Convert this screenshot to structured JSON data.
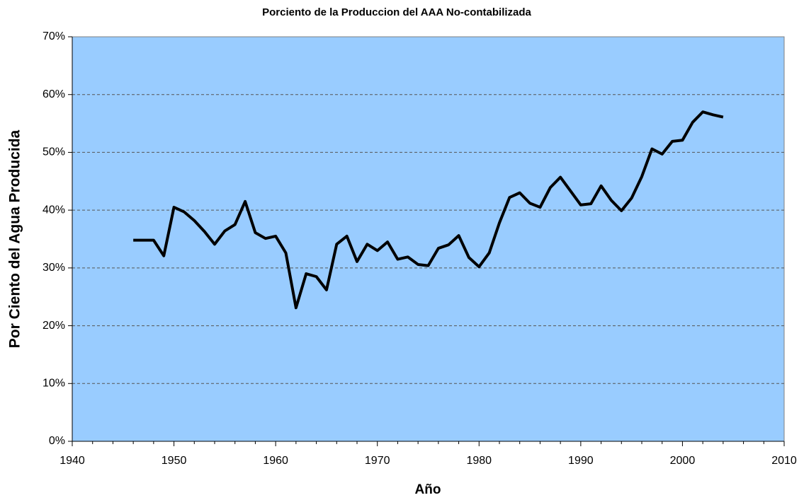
{
  "chart_data": {
    "type": "line",
    "title": "Porciento de la Produccion del AAA No-contabilizada",
    "x_label": "Año",
    "y_label": "Por Ciento del Agua Producida",
    "x": [
      1946,
      1947,
      1948,
      1949,
      1950,
      1951,
      1952,
      1953,
      1954,
      1955,
      1956,
      1957,
      1958,
      1959,
      1960,
      1961,
      1962,
      1963,
      1964,
      1965,
      1966,
      1967,
      1968,
      1969,
      1970,
      1971,
      1972,
      1973,
      1974,
      1975,
      1976,
      1977,
      1978,
      1979,
      1980,
      1981,
      1982,
      1983,
      1984,
      1985,
      1986,
      1987,
      1988,
      1989,
      1990,
      1991,
      1992,
      1993,
      1994,
      1995,
      1996,
      1997,
      1998,
      1999,
      2000,
      2001,
      2002,
      2003,
      2004
    ],
    "series": [
      {
        "color": "#000000",
        "values": [
          34.8,
          34.8,
          34.8,
          32.1,
          40.5,
          39.7,
          38.2,
          36.3,
          34.1,
          36.4,
          37.5,
          41.5,
          36.1,
          35.1,
          35.5,
          32.6,
          23.1,
          29.0,
          28.5,
          26.2,
          34.1,
          35.5,
          31.1,
          34.1,
          33.0,
          34.5,
          31.5,
          31.9,
          30.6,
          30.4,
          33.4,
          34.0,
          35.6,
          31.8,
          30.2,
          32.6,
          37.8,
          42.2,
          43.0,
          41.2,
          40.5,
          43.9,
          45.7,
          43.3,
          40.9,
          41.1,
          44.2,
          41.7,
          39.9,
          42.1,
          45.8,
          50.6,
          49.7,
          51.9,
          52.1,
          55.2,
          57.0,
          56.5,
          56.1
        ]
      }
    ],
    "xlim": [
      1940,
      2010
    ],
    "xticks": [
      1940,
      1950,
      1960,
      1970,
      1980,
      1990,
      2000,
      2010
    ],
    "ylim": [
      0,
      70
    ],
    "yticks": [
      {
        "value": 0,
        "label": "0%"
      },
      {
        "value": 10,
        "label": "10%"
      },
      {
        "value": 20,
        "label": "20%"
      },
      {
        "value": 30,
        "label": "30%"
      },
      {
        "value": 40,
        "label": "40%"
      },
      {
        "value": 50,
        "label": "50%"
      },
      {
        "value": 60,
        "label": "60%"
      },
      {
        "value": 70,
        "label": "70%"
      }
    ],
    "grid": true,
    "plot_background": "#99ccff"
  }
}
